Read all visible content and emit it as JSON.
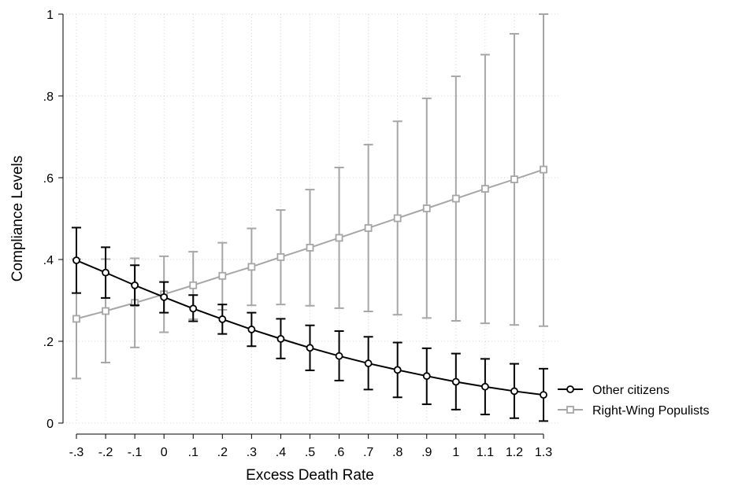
{
  "chart_data": {
    "type": "line",
    "title": "",
    "xlabel": "Excess Death Rate",
    "ylabel": "Compliance Levels",
    "x": [
      -0.3,
      -0.2,
      -0.1,
      0,
      0.1,
      0.2,
      0.3,
      0.4,
      0.5,
      0.6,
      0.7,
      0.8,
      0.9,
      1,
      1.1,
      1.2,
      1.3
    ],
    "x_tick_labels": [
      "-.3",
      "-.2",
      "-.1",
      "0",
      ".1",
      ".2",
      ".3",
      ".4",
      ".5",
      ".6",
      ".7",
      ".8",
      ".9",
      "1",
      "1.1",
      "1.2",
      "1.3"
    ],
    "y_ticks": [
      0,
      0.2,
      0.4,
      0.6,
      0.8,
      1
    ],
    "y_tick_labels": [
      "0",
      ".2",
      ".4",
      ".6",
      ".8",
      "1"
    ],
    "xlim": [
      -0.3,
      1.3
    ],
    "ylim": [
      0,
      1
    ],
    "grid": true,
    "legend_position": "right",
    "series": [
      {
        "name": "Other citizens",
        "color": "#000000",
        "marker": "circle",
        "values": [
          0.398,
          0.368,
          0.337,
          0.308,
          0.28,
          0.254,
          0.229,
          0.206,
          0.184,
          0.164,
          0.146,
          0.13,
          0.115,
          0.101,
          0.089,
          0.078,
          0.069
        ],
        "ci_low": [
          0.318,
          0.306,
          0.288,
          0.27,
          0.249,
          0.218,
          0.188,
          0.158,
          0.129,
          0.104,
          0.082,
          0.063,
          0.046,
          0.033,
          0.021,
          0.012,
          0.005
        ],
        "ci_high": [
          0.478,
          0.43,
          0.386,
          0.345,
          0.313,
          0.29,
          0.27,
          0.255,
          0.239,
          0.225,
          0.211,
          0.197,
          0.183,
          0.17,
          0.157,
          0.145,
          0.133
        ]
      },
      {
        "name": "Right-Wing Populists",
        "color": "#a6a6a6",
        "marker": "square",
        "values": [
          0.255,
          0.274,
          0.294,
          0.315,
          0.337,
          0.36,
          0.382,
          0.406,
          0.429,
          0.453,
          0.477,
          0.501,
          0.525,
          0.549,
          0.573,
          0.596,
          0.62
        ],
        "ci_low": [
          0.109,
          0.148,
          0.185,
          0.222,
          0.254,
          0.277,
          0.288,
          0.29,
          0.287,
          0.281,
          0.273,
          0.265,
          0.257,
          0.25,
          0.244,
          0.24,
          0.237
        ],
        "ci_high": [
          0.401,
          0.401,
          0.403,
          0.408,
          0.419,
          0.441,
          0.476,
          0.521,
          0.571,
          0.625,
          0.681,
          0.738,
          0.794,
          0.848,
          0.901,
          0.952,
          1.0
        ]
      }
    ]
  }
}
